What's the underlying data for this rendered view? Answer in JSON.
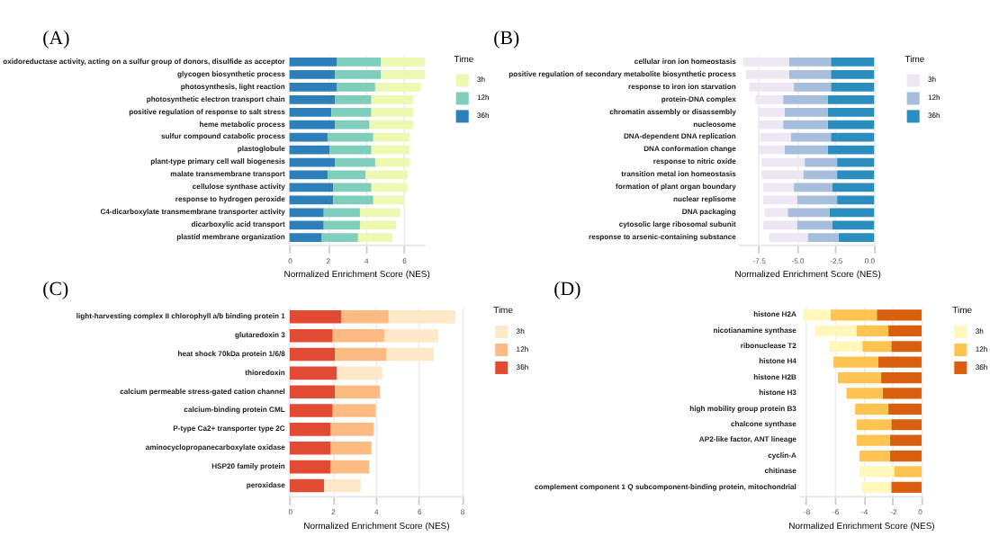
{
  "chart_data": [
    {
      "type": "bar",
      "orientation": "horizontal",
      "stacked": true,
      "title": "(A)",
      "xlabel": "Normalized Enrichment Score (NES)",
      "legend_title": "Time",
      "legend": "right",
      "grid": "x",
      "xlim": [
        -0.1,
        7.1
      ],
      "xticks": [
        0,
        2,
        4,
        6
      ],
      "categories": [
        "oxidoreductase activity, acting on a sulfur group of donors, disulfide as acceptor",
        "glycogen biosynthetic process",
        "photosynthesis, light reaction",
        "photosynthetic electron transport chain",
        "positive regulation of response to salt stress",
        "heme metabolic process",
        "sulfur compound catabolic process",
        "plastoglobule",
        "plant-type primary cell wall biogenesis",
        "malate transmembrane transport",
        "cellulose synthase activity",
        "response to hydrogen peroxide",
        "C4-dicarboxylate transmembrane transporter activity",
        "dicarboxylic acid transport",
        "plastid membrane organization"
      ],
      "series": [
        {
          "name": "36h",
          "color": "#2c7fb8",
          "values": [
            2.5,
            2.4,
            2.5,
            2.4,
            2.2,
            2.4,
            2.0,
            2.1,
            2.4,
            2.0,
            2.3,
            2.3,
            1.8,
            1.8,
            1.7
          ]
        },
        {
          "name": "12h",
          "color": "#7fcdbb",
          "values": [
            2.3,
            2.4,
            2.0,
            1.9,
            2.1,
            1.8,
            2.4,
            2.2,
            2.1,
            2.0,
            2.0,
            2.1,
            1.9,
            1.9,
            1.9
          ]
        },
        {
          "name": "3h",
          "color": "#edf8b1",
          "values": [
            2.3,
            2.3,
            2.4,
            2.2,
            2.2,
            2.3,
            1.9,
            2.0,
            1.8,
            2.2,
            1.9,
            1.6,
            2.1,
            1.9,
            1.8
          ]
        }
      ]
    },
    {
      "type": "bar",
      "orientation": "horizontal",
      "stacked": true,
      "title": "(B)",
      "xlabel": "Normalized Enrichment Score (NES)",
      "legend_title": "Time",
      "legend": "right",
      "grid": "x",
      "xlim": [
        -8.8,
        0.1
      ],
      "xticks": [
        {
          "value": -7.5,
          "label": "-7.5"
        },
        {
          "value": -5,
          "label": "-5.0"
        },
        {
          "value": -2.5,
          "label": "-2.5"
        },
        {
          "value": 0,
          "label": "0.0"
        }
      ],
      "categories": [
        "cellular iron ion homeostasis",
        "positive regulation of secondary metabolite biosynthetic process",
        "response to iron ion starvation",
        "protein-DNA complex",
        "chromatin assembly or disassembly",
        "nucleosome",
        "DNA-dependent DNA replication",
        "DNA conformation change",
        "response to nitric oxide",
        "transition metal ion homeostasis",
        "formation of plant organ boundary",
        "nuclear replisome",
        "DNA packaging",
        "cytosolic large ribosomal subunit",
        "response to arsenic-containing substance"
      ],
      "series": [
        {
          "name": "36h",
          "color": "#2b8cbe",
          "values": [
            -2.8,
            -2.8,
            -2.8,
            -3.0,
            -3.0,
            -3.0,
            -2.8,
            -3.0,
            -2.4,
            -2.4,
            -2.7,
            -2.4,
            -2.9,
            -2.7,
            -2.3
          ]
        },
        {
          "name": "12h",
          "color": "#a6bddb",
          "values": [
            -2.7,
            -2.7,
            -2.4,
            -2.9,
            -2.8,
            -2.9,
            -2.6,
            -2.8,
            -2.1,
            -2.2,
            -2.5,
            -2.6,
            -2.7,
            -2.3,
            -2.0
          ]
        },
        {
          "name": "3h",
          "color": "#ece7f2",
          "values": [
            -3.0,
            -2.8,
            -2.9,
            -1.8,
            -1.7,
            -1.6,
            -2.0,
            -1.7,
            -2.8,
            -2.7,
            -2.0,
            -2.2,
            -1.5,
            -2.2,
            -2.5
          ]
        }
      ]
    },
    {
      "type": "bar",
      "orientation": "horizontal",
      "stacked": true,
      "title": "(C)",
      "xlabel": "Normalized Enrichment Score (NES)",
      "legend_title": "Time",
      "legend": "right",
      "grid": "x",
      "xlim": [
        -0.1,
        8.1
      ],
      "xticks": [
        0,
        2,
        4,
        6,
        8
      ],
      "categories": [
        "light-harvesting complex II chlorophyll a/b binding protein 1",
        "glutaredoxin 3",
        "heat shock 70kDa protein 1/6/8",
        "thioredoxin",
        "calcium permeable stress-gated cation channel",
        "calcium-binding protein CML",
        "P-type Ca2+ transporter type 2C",
        "aminocyclopropanecarboxylate oxidase",
        "HSP20 family protein",
        "peroxidase"
      ],
      "series": [
        {
          "name": "36h",
          "color": "#e34a33",
          "values": [
            2.4,
            2.0,
            2.1,
            2.2,
            2.1,
            2.0,
            1.9,
            1.9,
            1.9,
            1.6
          ]
        },
        {
          "name": "12h",
          "color": "#fdbb84",
          "values": [
            2.2,
            2.4,
            2.4,
            null,
            2.1,
            2.0,
            2.0,
            1.9,
            1.8,
            null
          ]
        },
        {
          "name": "3h",
          "color": "#fee8c8",
          "values": [
            3.1,
            2.5,
            2.2,
            2.1,
            null,
            null,
            null,
            null,
            null,
            1.7
          ]
        }
      ]
    },
    {
      "type": "bar",
      "orientation": "horizontal",
      "stacked": true,
      "title": "(D)",
      "xlabel": "Normalized Enrichment Score (NES)",
      "legend_title": "Time",
      "legend": "right",
      "grid": "x",
      "xlim": [
        -8.5,
        0.1
      ],
      "xticks": [
        -8,
        -6,
        -4,
        -2,
        0
      ],
      "categories": [
        "histone H2A",
        "nicotianamine synthase",
        "ribonuclease T2",
        "histone H4",
        "histone H2B",
        "histone H3",
        "high mobility group protein B3",
        "chalcone synthase",
        "AP2-like factor, ANT lineage",
        "cyclin-A",
        "chitinase",
        "complement component 1 Q subcomponent-binding protein, mitochondrial"
      ],
      "series": [
        {
          "name": "36h",
          "color": "#d95f0e",
          "values": [
            -3.1,
            -2.3,
            -2.1,
            -3.0,
            -2.8,
            -2.7,
            -2.3,
            -2.1,
            -2.2,
            -2.2,
            null,
            -2.1
          ]
        },
        {
          "name": "12h",
          "color": "#fec44f",
          "values": [
            -3.2,
            -2.2,
            -2.0,
            -3.1,
            -3.0,
            -2.5,
            -2.3,
            -2.4,
            -2.3,
            -2.1,
            -1.9,
            null
          ]
        },
        {
          "name": "3h",
          "color": "#fff7bc",
          "values": [
            -1.9,
            -2.9,
            -2.3,
            null,
            null,
            null,
            null,
            null,
            null,
            null,
            -2.4,
            -2.0
          ]
        }
      ]
    }
  ]
}
